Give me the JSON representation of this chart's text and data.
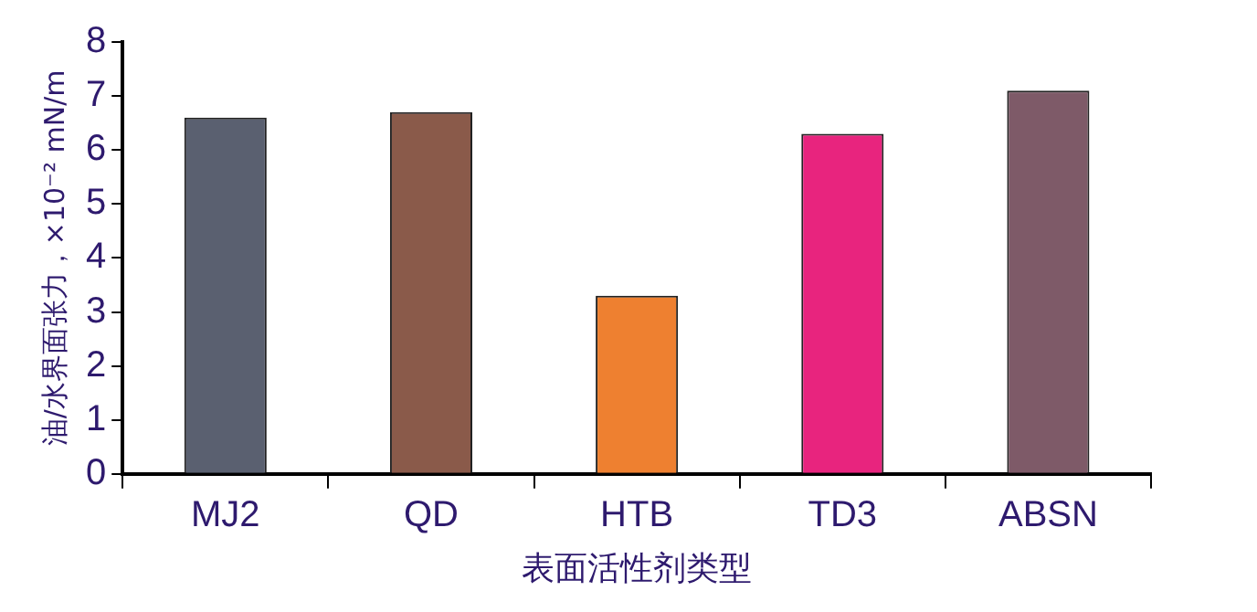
{
  "chart_data": {
    "type": "bar",
    "xlabel": "表面活性剂类型",
    "ylabel": "油/水界面张力，×10⁻² mN/m",
    "categories": [
      "MJ2",
      "QD",
      "HTB",
      "TD3",
      "ABSN"
    ],
    "values": [
      6.6,
      6.7,
      3.3,
      6.3,
      7.1
    ],
    "colors": [
      "#5a6070",
      "#8a5a4a",
      "#ee8030",
      "#e8247e",
      "#7e5a68"
    ],
    "ylim": [
      0,
      8
    ],
    "yticks": [
      0,
      1,
      2,
      3,
      4,
      5,
      6,
      7,
      8
    ],
    "grid": false,
    "legend": false
  }
}
